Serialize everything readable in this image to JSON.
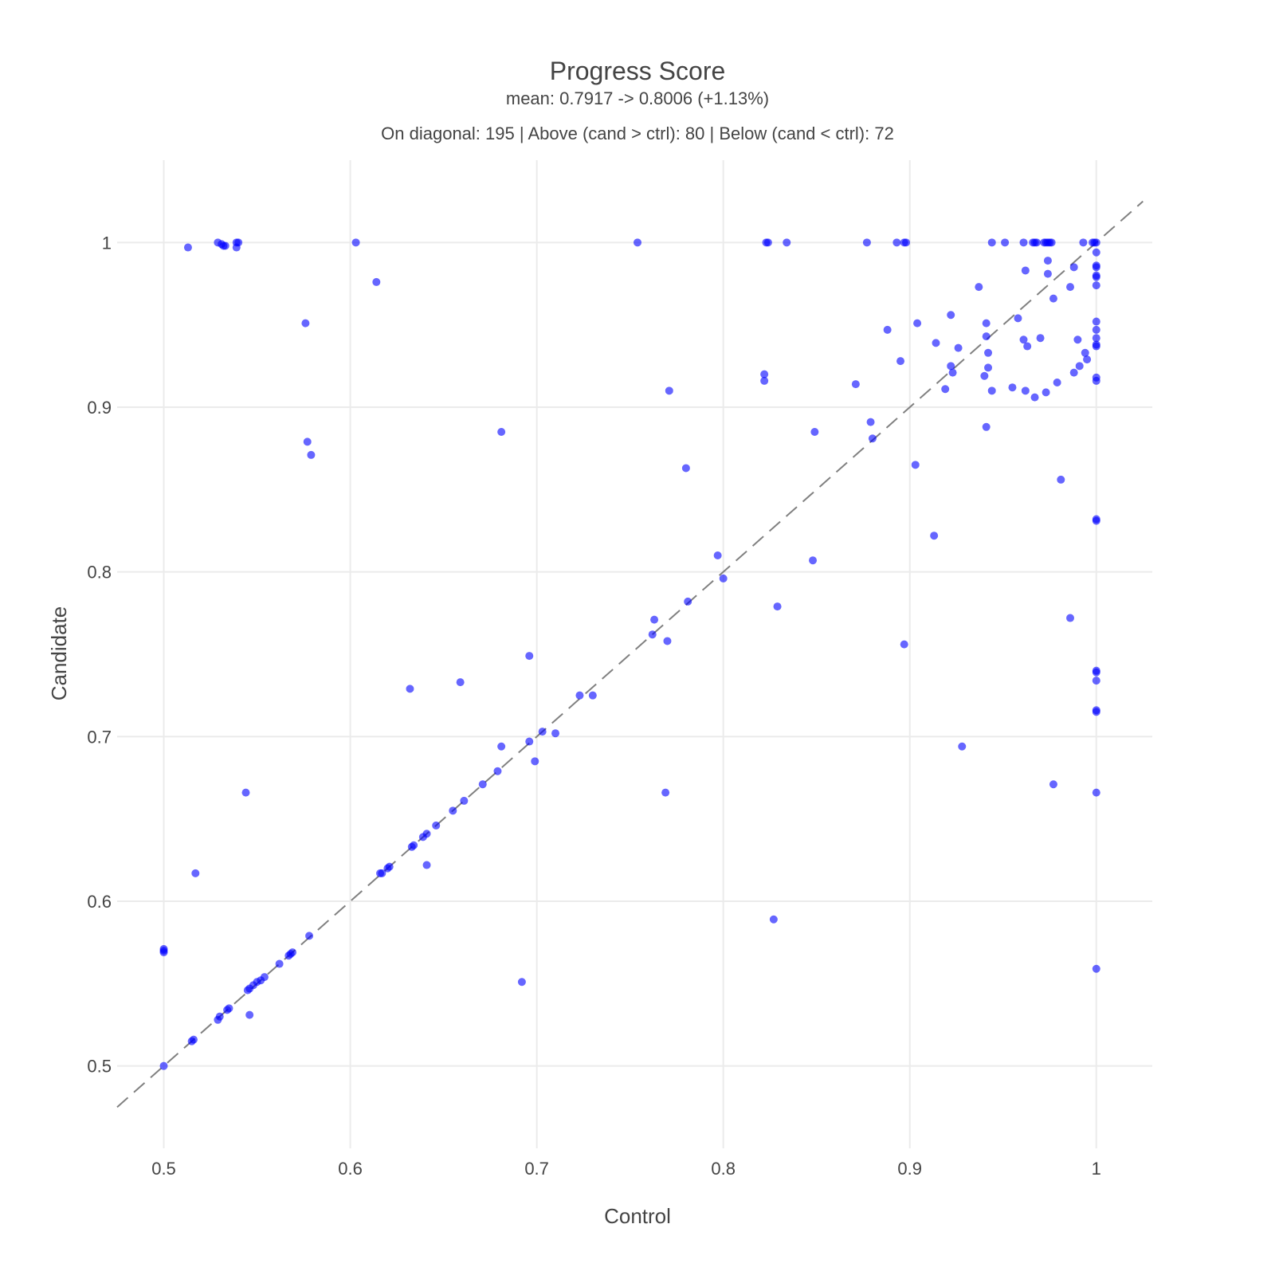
{
  "chart_data": {
    "type": "scatter",
    "title": "Progress Score",
    "subtitle": "mean: 0.7917 -> 0.8006 (+1.13%)",
    "annotation": "On diagonal: 195 | Above (cand > ctrl): 80 | Below (cand < ctrl): 72",
    "xlabel": "Control",
    "ylabel": "Candidate",
    "xlim": [
      0.475,
      1.03
    ],
    "ylim": [
      0.45,
      1.05
    ],
    "xticks": [
      0.5,
      0.6,
      0.7,
      0.8,
      0.9,
      1
    ],
    "xtick_labels": [
      "0.5",
      "0.6",
      "0.7",
      "0.8",
      "0.9",
      "1"
    ],
    "yticks": [
      0.5,
      0.6,
      0.7,
      0.8,
      0.9,
      1
    ],
    "ytick_labels": [
      "0.5",
      "0.6",
      "0.7",
      "0.8",
      "0.9",
      "1"
    ],
    "grid": true,
    "diagonal_reference": [
      0.475,
      1.025
    ],
    "point_color": "#0000ff",
    "points": [
      [
        0.5,
        0.5
      ],
      [
        0.515,
        0.515
      ],
      [
        0.516,
        0.516
      ],
      [
        0.529,
        0.528
      ],
      [
        0.53,
        0.53
      ],
      [
        0.534,
        0.534
      ],
      [
        0.535,
        0.535
      ],
      [
        0.545,
        0.546
      ],
      [
        0.546,
        0.547
      ],
      [
        0.548,
        0.549
      ],
      [
        0.55,
        0.551
      ],
      [
        0.552,
        0.552
      ],
      [
        0.554,
        0.554
      ],
      [
        0.562,
        0.562
      ],
      [
        0.567,
        0.567
      ],
      [
        0.568,
        0.568
      ],
      [
        0.569,
        0.569
      ],
      [
        0.578,
        0.579
      ],
      [
        0.616,
        0.617
      ],
      [
        0.617,
        0.617
      ],
      [
        0.62,
        0.62
      ],
      [
        0.621,
        0.621
      ],
      [
        0.633,
        0.633
      ],
      [
        0.634,
        0.634
      ],
      [
        0.639,
        0.639
      ],
      [
        0.641,
        0.641
      ],
      [
        0.646,
        0.646
      ],
      [
        0.655,
        0.655
      ],
      [
        0.661,
        0.661
      ],
      [
        0.671,
        0.671
      ],
      [
        0.679,
        0.679
      ],
      [
        0.696,
        0.697
      ],
      [
        0.703,
        0.703
      ],
      [
        0.71,
        0.702
      ],
      [
        0.723,
        0.725
      ],
      [
        0.73,
        0.725
      ],
      [
        0.762,
        0.762
      ],
      [
        0.781,
        0.782
      ],
      [
        0.8,
        0.796
      ],
      [
        0.88,
        0.881
      ],
      [
        0.5,
        0.57
      ],
      [
        0.5,
        0.571
      ],
      [
        0.5,
        0.569
      ],
      [
        0.513,
        0.997
      ],
      [
        0.529,
        1.0
      ],
      [
        0.531,
        0.999
      ],
      [
        0.532,
        0.998
      ],
      [
        0.533,
        0.998
      ],
      [
        0.539,
        1.0
      ],
      [
        0.54,
        1.0
      ],
      [
        0.539,
        0.997
      ],
      [
        0.603,
        1.0
      ],
      [
        0.614,
        0.976
      ],
      [
        0.576,
        0.951
      ],
      [
        0.577,
        0.879
      ],
      [
        0.579,
        0.871
      ],
      [
        0.517,
        0.617
      ],
      [
        0.544,
        0.666
      ],
      [
        0.546,
        0.531
      ],
      [
        0.632,
        0.729
      ],
      [
        0.659,
        0.733
      ],
      [
        0.681,
        0.694
      ],
      [
        0.681,
        0.885
      ],
      [
        0.696,
        0.749
      ],
      [
        0.699,
        0.685
      ],
      [
        0.641,
        0.622
      ],
      [
        0.692,
        0.551
      ],
      [
        0.754,
        1.0
      ],
      [
        0.763,
        0.771
      ],
      [
        0.77,
        0.758
      ],
      [
        0.771,
        0.91
      ],
      [
        0.769,
        0.666
      ],
      [
        0.78,
        0.863
      ],
      [
        0.797,
        0.81
      ],
      [
        0.822,
        0.92
      ],
      [
        0.822,
        0.916
      ],
      [
        0.823,
        1.0
      ],
      [
        0.824,
        1.0
      ],
      [
        0.834,
        1.0
      ],
      [
        0.827,
        0.589
      ],
      [
        0.829,
        0.779
      ],
      [
        0.848,
        0.807
      ],
      [
        0.849,
        0.885
      ],
      [
        0.871,
        0.914
      ],
      [
        0.877,
        1.0
      ],
      [
        0.879,
        0.891
      ],
      [
        0.888,
        0.947
      ],
      [
        0.893,
        1.0
      ],
      [
        0.895,
        0.928
      ],
      [
        0.897,
        1.0
      ],
      [
        0.898,
        1.0
      ],
      [
        0.897,
        0.756
      ],
      [
        0.903,
        0.865
      ],
      [
        0.904,
        0.951
      ],
      [
        0.913,
        0.822
      ],
      [
        0.914,
        0.939
      ],
      [
        0.919,
        0.911
      ],
      [
        0.922,
        0.956
      ],
      [
        0.922,
        0.925
      ],
      [
        0.923,
        0.921
      ],
      [
        0.926,
        0.936
      ],
      [
        0.928,
        0.694
      ],
      [
        0.937,
        0.973
      ],
      [
        0.94,
        0.919
      ],
      [
        0.941,
        0.951
      ],
      [
        0.941,
        0.943
      ],
      [
        0.941,
        0.888
      ],
      [
        0.942,
        0.933
      ],
      [
        0.942,
        0.924
      ],
      [
        0.944,
        1.0
      ],
      [
        0.944,
        0.91
      ],
      [
        0.951,
        1.0
      ],
      [
        0.955,
        0.912
      ],
      [
        0.958,
        0.954
      ],
      [
        0.961,
        1.0
      ],
      [
        0.961,
        0.941
      ],
      [
        0.962,
        0.983
      ],
      [
        0.962,
        0.91
      ],
      [
        0.963,
        0.937
      ],
      [
        0.966,
        1.0
      ],
      [
        0.967,
        1.0
      ],
      [
        0.968,
        1.0
      ],
      [
        0.967,
        0.906
      ],
      [
        0.97,
        0.942
      ],
      [
        0.972,
        1.0
      ],
      [
        0.973,
        1.0
      ],
      [
        0.974,
        1.0
      ],
      [
        0.975,
        1.0
      ],
      [
        0.973,
        0.909
      ],
      [
        0.974,
        0.989
      ],
      [
        0.974,
        0.981
      ],
      [
        0.976,
        1.0
      ],
      [
        0.977,
        0.966
      ],
      [
        0.977,
        0.671
      ],
      [
        0.979,
        0.915
      ],
      [
        0.981,
        0.856
      ],
      [
        0.986,
        0.973
      ],
      [
        0.986,
        0.772
      ],
      [
        0.988,
        0.985
      ],
      [
        0.988,
        0.921
      ],
      [
        0.99,
        0.941
      ],
      [
        0.991,
        0.925
      ],
      [
        0.993,
        1.0
      ],
      [
        0.994,
        0.933
      ],
      [
        0.995,
        0.929
      ],
      [
        0.998,
        1.0
      ],
      [
        0.999,
        1.0
      ],
      [
        1.0,
        1.0
      ],
      [
        1.0,
        0.994
      ],
      [
        1.0,
        0.986
      ],
      [
        1.0,
        0.985
      ],
      [
        1.0,
        0.98
      ],
      [
        1.0,
        0.979
      ],
      [
        1.0,
        0.974
      ],
      [
        1.0,
        0.952
      ],
      [
        1.0,
        0.947
      ],
      [
        1.0,
        0.942
      ],
      [
        1.0,
        0.938
      ],
      [
        1.0,
        0.937
      ],
      [
        1.0,
        0.918
      ],
      [
        1.0,
        0.916
      ],
      [
        1.0,
        0.832
      ],
      [
        1.0,
        0.831
      ],
      [
        1.0,
        0.74
      ],
      [
        1.0,
        0.739
      ],
      [
        1.0,
        0.734
      ],
      [
        1.0,
        0.716
      ],
      [
        1.0,
        0.715
      ],
      [
        1.0,
        0.666
      ],
      [
        1.0,
        0.559
      ]
    ]
  }
}
